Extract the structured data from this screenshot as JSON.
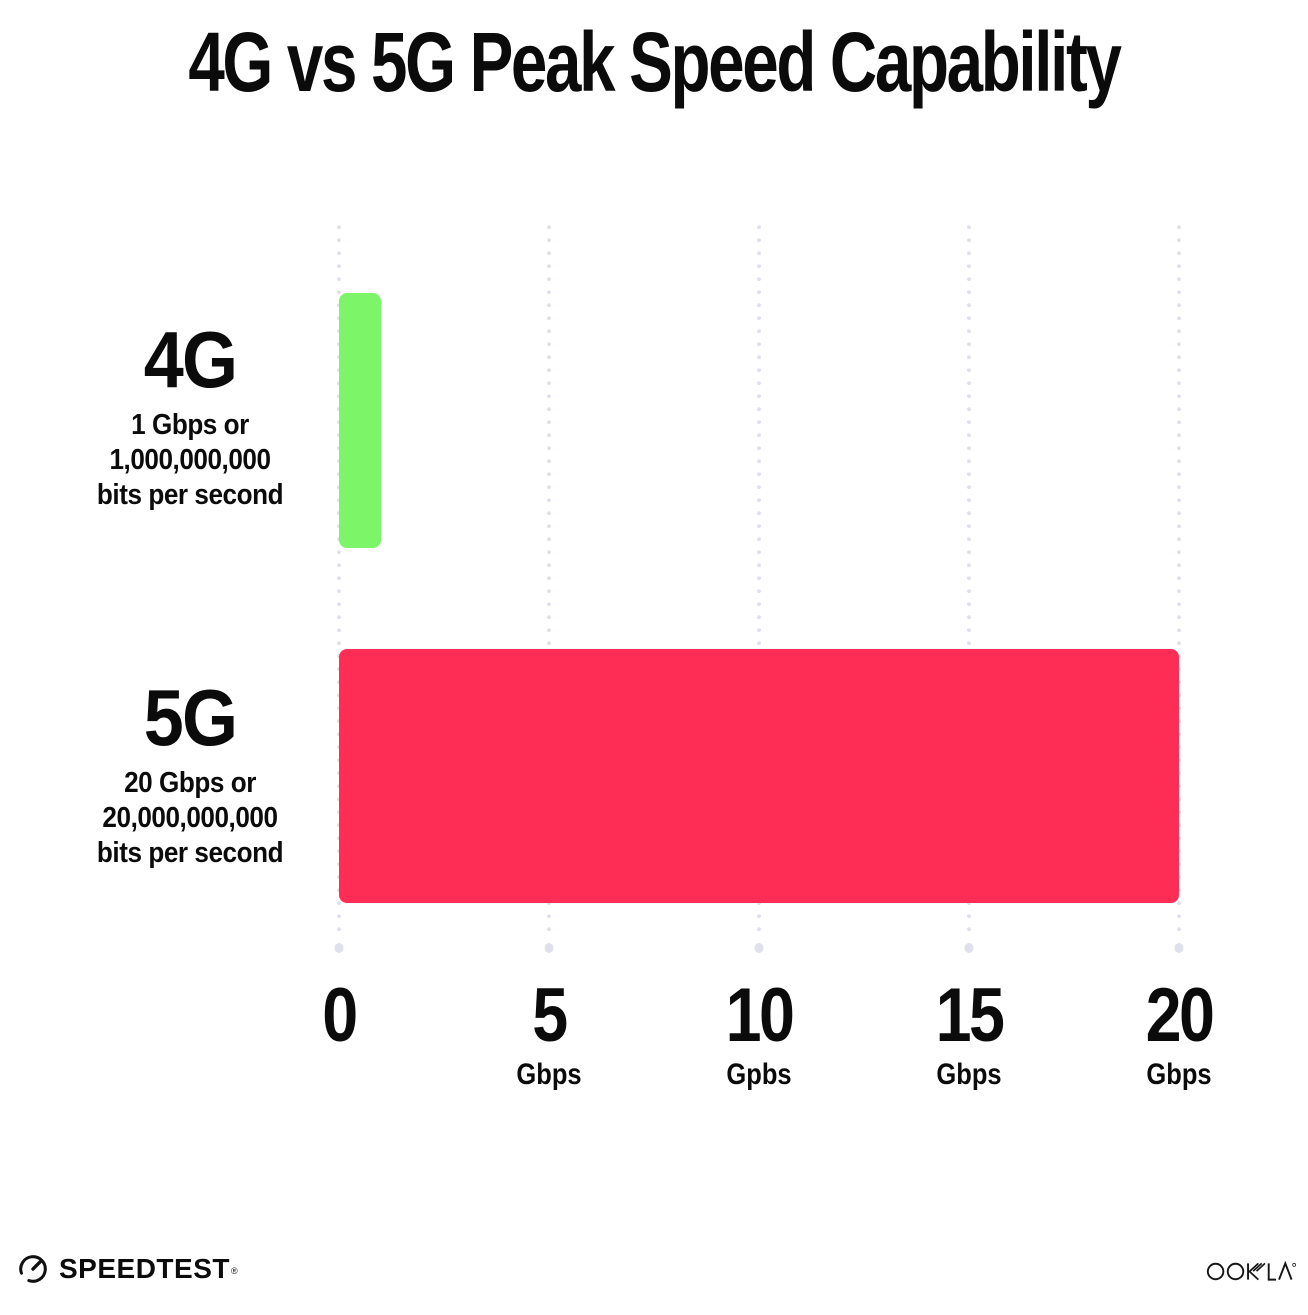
{
  "title": "4G vs 5G Peak Speed Capability",
  "chart_data": {
    "type": "bar",
    "orientation": "horizontal",
    "title": "4G vs 5G Peak Speed Capability",
    "xlabel": "Gbps",
    "xlim": [
      0,
      20
    ],
    "grid": {
      "style": "dotted-vertical",
      "color": "#dfe0ec"
    },
    "legend": "none",
    "rows": [
      {
        "name": "4G",
        "value": 1,
        "color": "#7cf569",
        "sublabel": [
          "1 Gbps or",
          "1,000,000,000",
          "bits per second"
        ]
      },
      {
        "name": "5G",
        "value": 20,
        "color": "#fd2d56",
        "sublabel": [
          "20 Gbps or",
          "20,000,000,000",
          "bits per second"
        ]
      }
    ],
    "x_ticks": [
      {
        "value": 0,
        "label": "0",
        "unit": ""
      },
      {
        "value": 5,
        "label": "5",
        "unit": "Gbps"
      },
      {
        "value": 10,
        "label": "10",
        "unit": "Gpbs"
      },
      {
        "value": 15,
        "label": "15",
        "unit": "Gbps"
      },
      {
        "value": 20,
        "label": "20",
        "unit": "Gbps"
      }
    ]
  },
  "footer": {
    "speedtest_label": "SPEEDTEST",
    "speedtest_trademark": "®",
    "speedtest_icon": "gauge-icon",
    "ookla_label": "OOKLA",
    "ookla_trademark": "®",
    "ookla_icon": "ookla-logo"
  },
  "colors": {
    "background": "#ffffff",
    "text": "#0b0b0b",
    "bar_4g": "#7cf569",
    "bar_5g": "#fd2d56",
    "gridline": "#dfe0ec"
  }
}
